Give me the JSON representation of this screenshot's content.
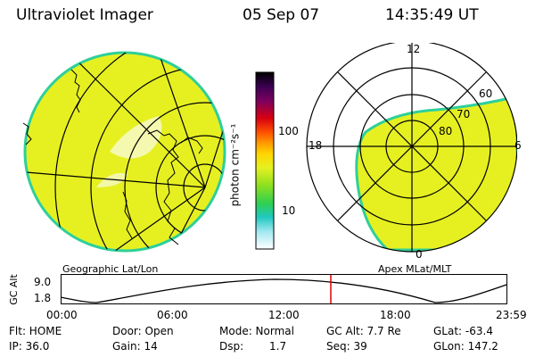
{
  "header": {
    "instrument": "Ultraviolet Imager",
    "date": "05 Sep 07",
    "time": "14:35:49 UT"
  },
  "geographic_panel": {
    "label": "Geographic Lat/Lon"
  },
  "colorbar": {
    "unit_label": "photon cm⁻²s⁻¹",
    "tick_100": "100",
    "tick_10": "10"
  },
  "polar_panel": {
    "label": "Apex MLat/MLT",
    "mlt_12": "12",
    "mlt_18": "18",
    "mlt_6": "6",
    "mlt_0": "0",
    "lat_60": "60",
    "lat_70": "70",
    "lat_80": "80"
  },
  "gc_alt_plot": {
    "axis_label": "GC Alt",
    "y_top": "9.0",
    "y_bottom": "1.8",
    "x_ticks": [
      "00:00",
      "06:00",
      "12:00",
      "18:00",
      "23:59"
    ]
  },
  "info": {
    "flt": "Flt: HOME",
    "door": "Door: Open",
    "mode": "Mode: Normal",
    "gc_alt": "GC Alt: 7.7 Re",
    "glat": "GLat: -63.4",
    "ip": "IP: 36.0",
    "gain": "Gain: 14",
    "dsp_label": "Dsp:",
    "dsp_value": "1.7",
    "seq": "Seq: 39",
    "glon": "GLon: 147.2"
  },
  "colors": {
    "fill": "#e6f021",
    "edge": "#2ecf9a",
    "marker": "#dd0000"
  }
}
